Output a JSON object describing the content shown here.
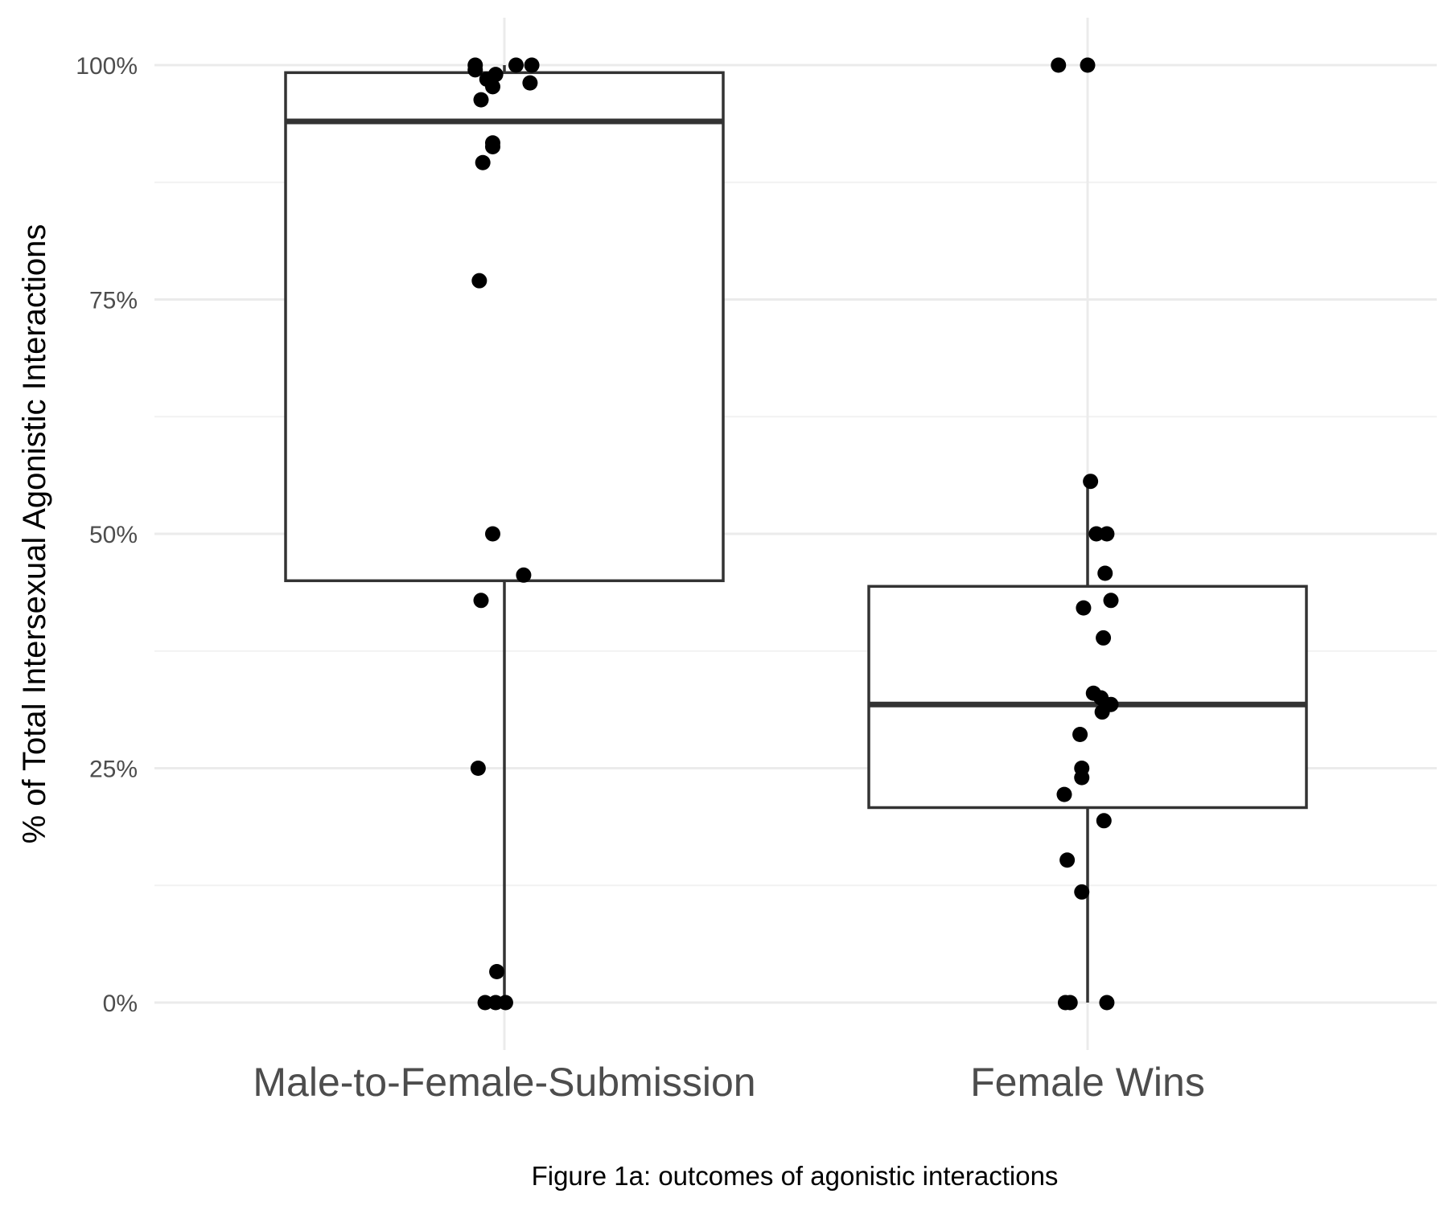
{
  "chart_data": {
    "type": "box",
    "title": "",
    "caption": "Figure 1a: outcomes of agonistic interactions",
    "xlabel": "",
    "ylabel": "% of Total Intersexual Agonistic Interactions",
    "ylim": [
      -0.04,
      1.05
    ],
    "y_ticks": [
      {
        "value": 0,
        "label": "0%"
      },
      {
        "value": 0.25,
        "label": "25%"
      },
      {
        "value": 0.5,
        "label": "50%"
      },
      {
        "value": 0.75,
        "label": "75%"
      },
      {
        "value": 1,
        "label": "100%"
      }
    ],
    "y_minor": [
      0.125,
      0.375,
      0.625,
      0.875
    ],
    "grid": true,
    "categories": [
      "Male-to-Female-Submission",
      "Female Wins"
    ],
    "boxes": [
      {
        "category": "Male-to-Female-Submission",
        "min": 0,
        "q1": 0.45,
        "median": 0.94,
        "q3": 0.992,
        "max": 1.0
      },
      {
        "category": "Female Wins",
        "min": 0,
        "q1": 0.208,
        "median": 0.318,
        "q3": 0.444,
        "max": 0.556
      }
    ],
    "points": [
      {
        "category": "Male-to-Female-Submission",
        "jitter": -0.05,
        "y": 1.0
      },
      {
        "category": "Male-to-Female-Submission",
        "jitter": -0.05,
        "y": 0.995
      },
      {
        "category": "Male-to-Female-Submission",
        "jitter": -0.03,
        "y": 0.985
      },
      {
        "category": "Male-to-Female-Submission",
        "jitter": -0.015,
        "y": 0.99
      },
      {
        "category": "Male-to-Female-Submission",
        "jitter": -0.02,
        "y": 0.977
      },
      {
        "category": "Male-to-Female-Submission",
        "jitter": 0.02,
        "y": 1.0
      },
      {
        "category": "Male-to-Female-Submission",
        "jitter": 0.047,
        "y": 1.0
      },
      {
        "category": "Male-to-Female-Submission",
        "jitter": 0.044,
        "y": 0.981
      },
      {
        "category": "Male-to-Female-Submission",
        "jitter": -0.04,
        "y": 0.963
      },
      {
        "category": "Male-to-Female-Submission",
        "jitter": -0.02,
        "y": 0.917
      },
      {
        "category": "Male-to-Female-Submission",
        "jitter": -0.02,
        "y": 0.913
      },
      {
        "category": "Male-to-Female-Submission",
        "jitter": -0.037,
        "y": 0.896
      },
      {
        "category": "Male-to-Female-Submission",
        "jitter": -0.043,
        "y": 0.77
      },
      {
        "category": "Male-to-Female-Submission",
        "jitter": -0.02,
        "y": 0.5
      },
      {
        "category": "Male-to-Female-Submission",
        "jitter": 0.033,
        "y": 0.456
      },
      {
        "category": "Male-to-Female-Submission",
        "jitter": -0.04,
        "y": 0.429
      },
      {
        "category": "Male-to-Female-Submission",
        "jitter": -0.045,
        "y": 0.25
      },
      {
        "category": "Male-to-Female-Submission",
        "jitter": -0.013,
        "y": 0.033
      },
      {
        "category": "Male-to-Female-Submission",
        "jitter": -0.033,
        "y": 0
      },
      {
        "category": "Male-to-Female-Submission",
        "jitter": -0.015,
        "y": 0
      },
      {
        "category": "Male-to-Female-Submission",
        "jitter": 0.002,
        "y": 0
      },
      {
        "category": "Female Wins",
        "jitter": -0.05,
        "y": 1.0
      },
      {
        "category": "Female Wins",
        "jitter": 0.0,
        "y": 1.0
      },
      {
        "category": "Female Wins",
        "jitter": 0.005,
        "y": 0.556
      },
      {
        "category": "Female Wins",
        "jitter": 0.015,
        "y": 0.5
      },
      {
        "category": "Female Wins",
        "jitter": 0.033,
        "y": 0.5
      },
      {
        "category": "Female Wins",
        "jitter": 0.03,
        "y": 0.458
      },
      {
        "category": "Female Wins",
        "jitter": 0.04,
        "y": 0.429
      },
      {
        "category": "Female Wins",
        "jitter": -0.007,
        "y": 0.421
      },
      {
        "category": "Female Wins",
        "jitter": 0.027,
        "y": 0.389
      },
      {
        "category": "Female Wins",
        "jitter": 0.01,
        "y": 0.33
      },
      {
        "category": "Female Wins",
        "jitter": 0.023,
        "y": 0.325
      },
      {
        "category": "Female Wins",
        "jitter": 0.04,
        "y": 0.318
      },
      {
        "category": "Female Wins",
        "jitter": 0.025,
        "y": 0.31
      },
      {
        "category": "Female Wins",
        "jitter": -0.013,
        "y": 0.286
      },
      {
        "category": "Female Wins",
        "jitter": -0.01,
        "y": 0.25
      },
      {
        "category": "Female Wins",
        "jitter": -0.01,
        "y": 0.24
      },
      {
        "category": "Female Wins",
        "jitter": -0.04,
        "y": 0.222
      },
      {
        "category": "Female Wins",
        "jitter": 0.028,
        "y": 0.194
      },
      {
        "category": "Female Wins",
        "jitter": -0.035,
        "y": 0.152
      },
      {
        "category": "Female Wins",
        "jitter": -0.01,
        "y": 0.118
      },
      {
        "category": "Female Wins",
        "jitter": -0.038,
        "y": 0
      },
      {
        "category": "Female Wins",
        "jitter": -0.03,
        "y": 0
      },
      {
        "category": "Female Wins",
        "jitter": 0.033,
        "y": 0
      }
    ]
  }
}
